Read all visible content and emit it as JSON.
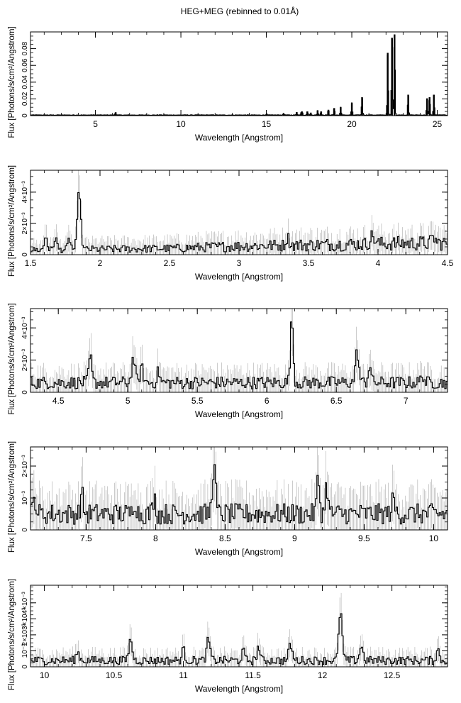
{
  "figure_title": "HEG+MEG (rebinned to 0.01Å)",
  "chart_data": [
    {
      "type": "line",
      "style": "step histogram with error bars",
      "xlabel": "Wavelength [Angstrom]",
      "ylabel": "Flux [Photons/s/cm²/Angstrom]",
      "xlim": [
        1.2,
        25.6
      ],
      "ylim": [
        0,
        0.1
      ],
      "x_ticks": [
        5,
        10,
        15,
        20,
        25
      ],
      "y_ticks": [
        0,
        0.02,
        0.04,
        0.06,
        0.08
      ],
      "y_tick_labels": [
        "0",
        "0.02",
        "0.04",
        "0.06",
        "0.08"
      ],
      "baseline": 0.0007,
      "lines": [
        {
          "x": 6.18,
          "y": 0.004
        },
        {
          "x": 15.01,
          "y": 0.002
        },
        {
          "x": 16.01,
          "y": 0.0025
        },
        {
          "x": 16.78,
          "y": 0.004
        },
        {
          "x": 17.05,
          "y": 0.004
        },
        {
          "x": 17.1,
          "y": 0.004
        },
        {
          "x": 17.4,
          "y": 0.005
        },
        {
          "x": 17.6,
          "y": 0.003
        },
        {
          "x": 18.0,
          "y": 0.006
        },
        {
          "x": 18.2,
          "y": 0.005
        },
        {
          "x": 18.63,
          "y": 0.007
        },
        {
          "x": 18.97,
          "y": 0.009
        },
        {
          "x": 19.35,
          "y": 0.01
        },
        {
          "x": 20.0,
          "y": 0.015
        },
        {
          "x": 20.6,
          "y": 0.022
        },
        {
          "x": 22.1,
          "y": 0.075
        },
        {
          "x": 22.35,
          "y": 0.093
        },
        {
          "x": 22.5,
          "y": 0.097
        },
        {
          "x": 23.3,
          "y": 0.025
        },
        {
          "x": 24.4,
          "y": 0.02
        },
        {
          "x": 24.55,
          "y": 0.022
        },
        {
          "x": 24.8,
          "y": 0.025
        }
      ]
    },
    {
      "type": "line",
      "style": "step histogram with error bars",
      "xlabel": "Wavelength [Angstrom]",
      "ylabel": "Flux [Photons/s/cm²/Angstrom]",
      "xlim": [
        1.5,
        4.5
      ],
      "ylim": [
        0,
        0.0054
      ],
      "x_ticks": [
        1.5,
        2,
        2.5,
        3,
        3.5,
        4,
        4.5
      ],
      "y_ticks": [
        0,
        0.002,
        0.004
      ],
      "y_tick_labels": [
        "0",
        "2×10⁻³",
        "4×10⁻³"
      ],
      "baseline": 0.0005,
      "trend": [
        [
          1.5,
          0.0003
        ],
        [
          2.5,
          0.0004
        ],
        [
          3.0,
          0.00055
        ],
        [
          4.0,
          0.0007
        ],
        [
          4.5,
          0.00075
        ]
      ],
      "lines": [
        {
          "x": 1.85,
          "y": 0.0041,
          "w": 0.012
        },
        {
          "x": 1.61,
          "y": 0.0012,
          "w": 0.01
        },
        {
          "x": 1.68,
          "y": 0.0011,
          "w": 0.01
        },
        {
          "x": 1.78,
          "y": 0.001,
          "w": 0.01
        },
        {
          "x": 3.35,
          "y": 0.0011,
          "w": 0.012
        },
        {
          "x": 3.96,
          "y": 0.0012,
          "w": 0.015
        },
        {
          "x": 4.4,
          "y": 0.0011,
          "w": 0.012
        }
      ]
    },
    {
      "type": "line",
      "style": "step histogram with error bars",
      "xlabel": "Wavelength [Angstrom]",
      "ylabel": "Flux [Photons/s/cm²/Angstrom]",
      "xlim": [
        4.3,
        7.3
      ],
      "ylim": [
        0,
        0.0052
      ],
      "x_ticks": [
        4.5,
        5,
        5.5,
        6,
        6.5,
        7
      ],
      "y_ticks": [
        0,
        0.002,
        0.004
      ],
      "y_tick_labels": [
        "0",
        "2×10⁻³",
        "4×10⁻³"
      ],
      "baseline": 0.0006,
      "trend": [
        [
          4.3,
          0.0006
        ],
        [
          7.3,
          0.0006
        ]
      ],
      "lines": [
        {
          "x": 4.73,
          "y": 0.0022,
          "w": 0.01
        },
        {
          "x": 5.04,
          "y": 0.0021,
          "w": 0.012
        },
        {
          "x": 5.1,
          "y": 0.0015,
          "w": 0.012
        },
        {
          "x": 5.22,
          "y": 0.0013,
          "w": 0.01
        },
        {
          "x": 6.18,
          "y": 0.0045,
          "w": 0.01
        },
        {
          "x": 6.65,
          "y": 0.0025,
          "w": 0.012
        },
        {
          "x": 6.74,
          "y": 0.0017,
          "w": 0.01
        },
        {
          "x": 7.12,
          "y": 0.0011,
          "w": 0.01
        }
      ]
    },
    {
      "type": "line",
      "style": "step histogram with error bars",
      "xlabel": "Wavelength [Angstrom]",
      "ylabel": "Flux [Photons/s/cm²/Angstrom]",
      "xlim": [
        7.1,
        10.1
      ],
      "ylim": [
        0,
        0.0026
      ],
      "x_ticks": [
        7.5,
        8,
        8.5,
        9,
        9.5,
        10
      ],
      "y_ticks": [
        0,
        0.001,
        0.002
      ],
      "y_tick_labels": [
        "0",
        "10⁻³",
        "2×10⁻³"
      ],
      "baseline": 0.0005,
      "trend": [
        [
          7.1,
          0.0005
        ],
        [
          10.1,
          0.0005
        ]
      ],
      "lines": [
        {
          "x": 7.13,
          "y": 0.001,
          "w": 0.01
        },
        {
          "x": 7.47,
          "y": 0.0011,
          "w": 0.01
        },
        {
          "x": 7.85,
          "y": 0.0009,
          "w": 0.012
        },
        {
          "x": 7.99,
          "y": 0.001,
          "w": 0.01
        },
        {
          "x": 8.42,
          "y": 0.002,
          "w": 0.012
        },
        {
          "x": 9.17,
          "y": 0.0016,
          "w": 0.01
        },
        {
          "x": 9.23,
          "y": 0.0014,
          "w": 0.01
        },
        {
          "x": 9.71,
          "y": 0.0009,
          "w": 0.012
        }
      ]
    },
    {
      "type": "line",
      "style": "step histogram with error bars",
      "xlabel": "Wavelength [Angstrom]",
      "ylabel": "Flux [Photons/s/cm²/Angstrom]",
      "xlim": [
        9.9,
        12.9
      ],
      "ylim": [
        0,
        0.0051
      ],
      "x_ticks": [
        10,
        10.5,
        11,
        11.5,
        12,
        12.5
      ],
      "y_ticks": [
        0,
        0.001,
        0.002,
        0.003,
        0.004
      ],
      "y_tick_labels": [
        "0",
        "10⁻³",
        "2×10⁻³",
        "3×10⁻³",
        "4×10⁻³"
      ],
      "baseline": 0.0004,
      "trend": [
        [
          9.9,
          0.0004
        ],
        [
          12.9,
          0.0004
        ]
      ],
      "lines": [
        {
          "x": 10.24,
          "y": 0.0009,
          "w": 0.012
        },
        {
          "x": 10.62,
          "y": 0.0017,
          "w": 0.012
        },
        {
          "x": 11.0,
          "y": 0.0011,
          "w": 0.01
        },
        {
          "x": 11.18,
          "y": 0.0017,
          "w": 0.012
        },
        {
          "x": 11.43,
          "y": 0.001,
          "w": 0.01
        },
        {
          "x": 11.54,
          "y": 0.0013,
          "w": 0.01
        },
        {
          "x": 11.77,
          "y": 0.0014,
          "w": 0.012
        },
        {
          "x": 12.13,
          "y": 0.0035,
          "w": 0.012
        },
        {
          "x": 12.28,
          "y": 0.0013,
          "w": 0.012
        },
        {
          "x": 12.83,
          "y": 0.0011,
          "w": 0.01
        }
      ]
    }
  ]
}
